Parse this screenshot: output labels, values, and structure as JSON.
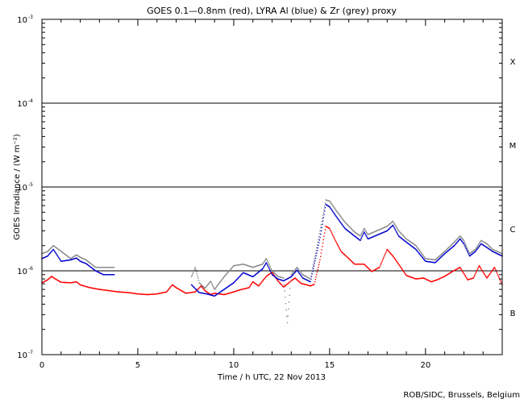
{
  "chart_data": {
    "type": "scatter",
    "title": "GOES 0.1—0.8nm (red), LYRA Al (blue) & Zr (grey) proxy",
    "xlabel": "Time / h UTC, 22 Nov 2013",
    "ylabel": "GOES Irradiance / (W m⁻²)",
    "credit": "ROB/SIDC, Brussels, Belgium",
    "xlim": [
      0,
      24
    ],
    "ylim": [
      1e-07,
      0.001
    ],
    "yscale": "log",
    "xticks": [
      {
        "value": 0,
        "label": "0"
      },
      {
        "value": 5,
        "label": "5"
      },
      {
        "value": 10,
        "label": "10"
      },
      {
        "value": 15,
        "label": "15"
      },
      {
        "value": 20,
        "label": "20"
      }
    ],
    "yticks": [
      {
        "value": 1e-07,
        "base": "10",
        "exp": "-7"
      },
      {
        "value": 1e-06,
        "base": "10",
        "exp": "-6"
      },
      {
        "value": 1e-05,
        "base": "10",
        "exp": "-5"
      },
      {
        "value": 0.0001,
        "base": "10",
        "exp": "-4"
      },
      {
        "value": 0.001,
        "base": "10",
        "exp": "-3"
      }
    ],
    "class_lines": [
      1e-06,
      1e-05,
      0.0001
    ],
    "class_labels": [
      {
        "label": "B",
        "value": 3.16e-07
      },
      {
        "label": "C",
        "value": 3.16e-06
      },
      {
        "label": "M",
        "value": 3.16e-05
      },
      {
        "label": "X",
        "value": 0.000316
      }
    ],
    "series": [
      {
        "name": "GOES 0.1—0.8nm",
        "color": "#ff0000",
        "points": [
          [
            0,
            7.2e-07
          ],
          [
            0.3,
            7.8e-07
          ],
          [
            0.5,
            8.6e-07
          ],
          [
            0.7,
            8e-07
          ],
          [
            1,
            7.3e-07
          ],
          [
            1.5,
            7.2e-07
          ],
          [
            1.8,
            7.4e-07
          ],
          [
            2,
            6.8e-07
          ],
          [
            2.5,
            6.3e-07
          ],
          [
            3,
            6e-07
          ],
          [
            3.5,
            5.8e-07
          ],
          [
            4,
            5.6e-07
          ],
          [
            4.5,
            5.5e-07
          ],
          [
            5,
            5.3e-07
          ],
          [
            5.5,
            5.2e-07
          ],
          [
            6,
            5.3e-07
          ],
          [
            6.5,
            5.6e-07
          ],
          [
            6.8,
            6.8e-07
          ],
          [
            7,
            6.3e-07
          ],
          [
            7.5,
            5.4e-07
          ],
          [
            8,
            5.6e-07
          ],
          [
            8.3,
            6.6e-07
          ],
          [
            8.5,
            5.8e-07
          ],
          [
            8.8,
            5.2e-07
          ],
          [
            9,
            5.4e-07
          ],
          [
            9.5,
            5.2e-07
          ],
          [
            10,
            5.6e-07
          ],
          [
            10.3,
            5.9e-07
          ],
          [
            10.8,
            6.3e-07
          ],
          [
            11,
            7.4e-07
          ],
          [
            11.3,
            6.6e-07
          ],
          [
            11.7,
            8.6e-07
          ],
          [
            12,
            9.6e-07
          ],
          [
            12.3,
            7.6e-07
          ],
          [
            12.6,
            6.4e-07
          ],
          [
            13,
            7.6e-07
          ],
          [
            13.2,
            8.2e-07
          ],
          [
            13.5,
            7.1e-07
          ],
          [
            14,
            6.6e-07
          ],
          [
            14.2,
            6.9e-07
          ],
          [
            14.5,
            1.35e-06
          ],
          [
            14.8,
            3.4e-06
          ],
          [
            15,
            3.2e-06
          ],
          [
            15.3,
            2.3e-06
          ],
          [
            15.6,
            1.7e-06
          ],
          [
            16,
            1.4e-06
          ],
          [
            16.3,
            1.2e-06
          ],
          [
            16.8,
            1.2e-06
          ],
          [
            17.2,
            9.8e-07
          ],
          [
            17.6,
            1.1e-06
          ],
          [
            18,
            1.8e-06
          ],
          [
            18.3,
            1.5e-06
          ],
          [
            18.6,
            1.2e-06
          ],
          [
            19,
            8.8e-07
          ],
          [
            19.5,
            8e-07
          ],
          [
            19.9,
            8.2e-07
          ],
          [
            20.3,
            7.4e-07
          ],
          [
            20.6,
            7.8e-07
          ],
          [
            21,
            8.6e-07
          ],
          [
            21.4,
            9.8e-07
          ],
          [
            21.8,
            1.1e-06
          ],
          [
            22.2,
            7.8e-07
          ],
          [
            22.5,
            8.2e-07
          ],
          [
            22.8,
            1.15e-06
          ],
          [
            23.2,
            8.2e-07
          ],
          [
            23.6,
            1.1e-06
          ],
          [
            24,
            6.8e-07
          ]
        ]
      },
      {
        "name": "LYRA Al",
        "color": "#0000cc",
        "points": [
          [
            0,
            1.4e-06
          ],
          [
            0.3,
            1.5e-06
          ],
          [
            0.5,
            1.7e-06
          ],
          [
            0.6,
            1.8e-06
          ],
          [
            1,
            1.3e-06
          ],
          [
            1.5,
            1.35e-06
          ],
          [
            1.8,
            1.42e-06
          ],
          [
            2,
            1.3e-06
          ],
          [
            2.3,
            1.22e-06
          ],
          [
            2.8,
            1e-06
          ],
          [
            3.2,
            9e-07
          ],
          [
            3.8,
            9e-07
          ],
          [
            7.8,
            6.8e-07
          ],
          [
            8.2,
            5.5e-07
          ],
          [
            8.6,
            5.3e-07
          ],
          [
            9,
            5e-07
          ],
          [
            9.5,
            6e-07
          ],
          [
            10,
            7.2e-07
          ],
          [
            10.5,
            9.5e-07
          ],
          [
            11,
            8.5e-07
          ],
          [
            11.5,
            1.05e-06
          ],
          [
            11.7,
            1.25e-06
          ],
          [
            12,
            9e-07
          ],
          [
            12.3,
            8e-07
          ],
          [
            12.6,
            7.6e-07
          ],
          [
            13,
            8.5e-07
          ],
          [
            13.3,
            1.02e-06
          ],
          [
            13.6,
            8.2e-07
          ],
          [
            14,
            7.4e-07
          ],
          [
            14.5,
            2.5e-06
          ],
          [
            14.8,
            6.2e-06
          ],
          [
            15,
            5.8e-06
          ],
          [
            15.3,
            4.6e-06
          ],
          [
            15.8,
            3.2e-06
          ],
          [
            16.3,
            2.6e-06
          ],
          [
            16.6,
            2.3e-06
          ],
          [
            16.8,
            2.9e-06
          ],
          [
            17,
            2.4e-06
          ],
          [
            18,
            3e-06
          ],
          [
            18.3,
            3.5e-06
          ],
          [
            18.6,
            2.6e-06
          ],
          [
            19,
            2.2e-06
          ],
          [
            19.5,
            1.8e-06
          ],
          [
            20,
            1.3e-06
          ],
          [
            20.5,
            1.25e-06
          ],
          [
            21,
            1.6e-06
          ],
          [
            21.5,
            2e-06
          ],
          [
            21.8,
            2.4e-06
          ],
          [
            22,
            2.1e-06
          ],
          [
            22.3,
            1.5e-06
          ],
          [
            22.6,
            1.7e-06
          ],
          [
            22.9,
            2.1e-06
          ],
          [
            23.2,
            1.9e-06
          ],
          [
            23.5,
            1.7e-06
          ],
          [
            24,
            1.5e-06
          ]
        ]
      },
      {
        "name": "LYRA Zr",
        "color": "#888888",
        "points": [
          [
            0,
            1.6e-06
          ],
          [
            0.3,
            1.7e-06
          ],
          [
            0.5,
            1.9e-06
          ],
          [
            0.6,
            2e-06
          ],
          [
            1.5,
            1.4e-06
          ],
          [
            1.8,
            1.55e-06
          ],
          [
            2,
            1.45e-06
          ],
          [
            2.3,
            1.35e-06
          ],
          [
            2.8,
            1.1e-06
          ],
          [
            3.2,
            1.1e-06
          ],
          [
            3.8,
            1.1e-06
          ],
          [
            7.8,
            8.5e-07
          ],
          [
            8,
            1.1e-06
          ],
          [
            8.2,
            7.2e-07
          ],
          [
            8.5,
            6.2e-07
          ],
          [
            8.8,
            7.5e-07
          ],
          [
            9,
            6e-07
          ],
          [
            9.5,
            8.5e-07
          ],
          [
            10,
            1.15e-06
          ],
          [
            10.5,
            1.2e-06
          ],
          [
            11,
            1.1e-06
          ],
          [
            11.5,
            1.2e-06
          ],
          [
            11.7,
            1.4e-06
          ],
          [
            12,
            1e-06
          ],
          [
            12.3,
            8.6e-07
          ],
          [
            12.6,
            8.2e-07
          ],
          [
            12.8,
            2.4e-07
          ],
          [
            13,
            9e-07
          ],
          [
            13.3,
            1.1e-06
          ],
          [
            13.6,
            9e-07
          ],
          [
            14,
            8e-07
          ],
          [
            14.5,
            3e-06
          ],
          [
            14.8,
            7e-06
          ],
          [
            15,
            6.8e-06
          ],
          [
            15.3,
            5.4e-06
          ],
          [
            15.8,
            3.8e-06
          ],
          [
            16.3,
            2.9e-06
          ],
          [
            16.6,
            2.6e-06
          ],
          [
            16.8,
            3.2e-06
          ],
          [
            17,
            2.7e-06
          ],
          [
            18,
            3.4e-06
          ],
          [
            18.3,
            3.9e-06
          ],
          [
            18.6,
            3e-06
          ],
          [
            19,
            2.4e-06
          ],
          [
            19.5,
            2e-06
          ],
          [
            20,
            1.4e-06
          ],
          [
            20.5,
            1.35e-06
          ],
          [
            21,
            1.7e-06
          ],
          [
            21.5,
            2.2e-06
          ],
          [
            21.8,
            2.6e-06
          ],
          [
            22,
            2.3e-06
          ],
          [
            22.3,
            1.6e-06
          ],
          [
            22.6,
            1.8e-06
          ],
          [
            22.9,
            2.3e-06
          ],
          [
            23.2,
            2.1e-06
          ],
          [
            23.5,
            1.8e-06
          ],
          [
            24,
            1.6e-06
          ]
        ]
      }
    ]
  }
}
